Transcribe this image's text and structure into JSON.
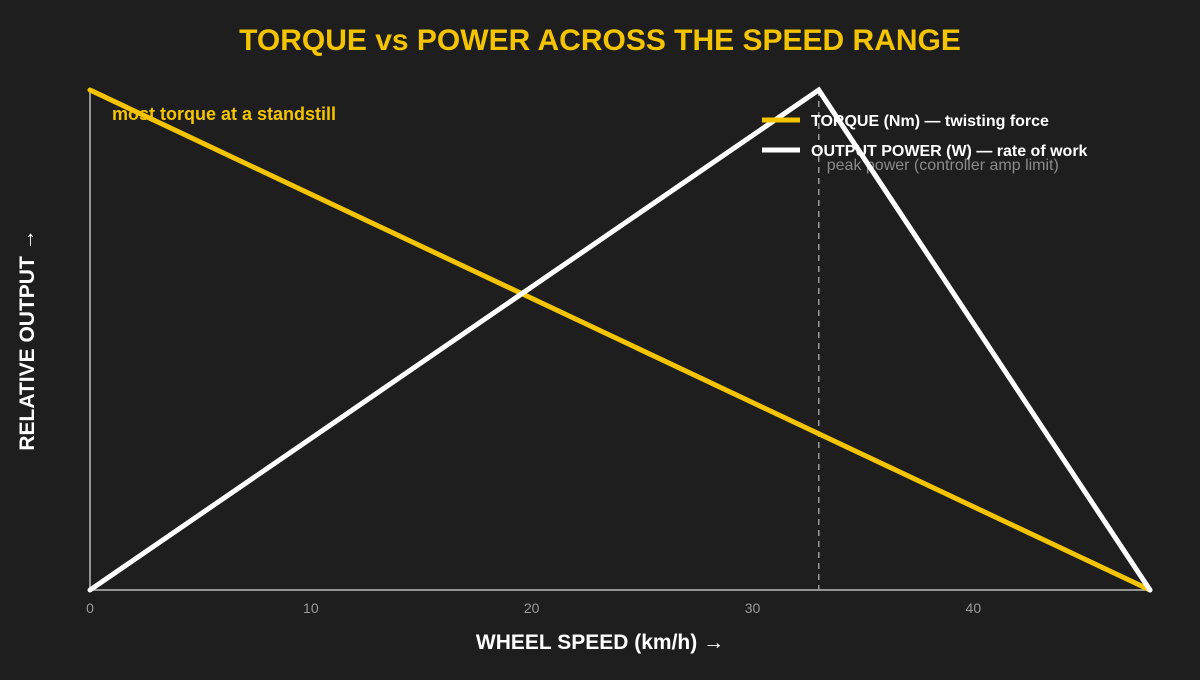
{
  "chart_data": {
    "type": "line",
    "title": "TORQUE vs POWER ACROSS THE SPEED RANGE",
    "xlabel": "WHEEL SPEED  (km/h)  →",
    "ylabel": "RELATIVE OUTPUT  →",
    "xlim": [
      0,
      48
    ],
    "ylim": [
      0,
      1
    ],
    "x_ticks": [
      0,
      10,
      20,
      30,
      40
    ],
    "y_ticks_shown": false,
    "grid": false,
    "legend_position": "top-right",
    "series": [
      {
        "name": "TORQUE (Nm) — twisting force",
        "color": "#f5c400",
        "x": [
          0,
          48
        ],
        "y": [
          1.0,
          0.0
        ]
      },
      {
        "name": "OUTPUT POWER (W) — rate of work",
        "color": "#ffffff",
        "x": [
          0,
          33,
          48
        ],
        "y": [
          0.0,
          1.0,
          0.0
        ]
      }
    ],
    "reference_lines": [
      {
        "x": 33,
        "style": "dashed",
        "color": "#9a9a9a",
        "label": "peak power (controller amp limit)"
      }
    ],
    "annotations": [
      {
        "text": "most torque at a standstill",
        "x": 1,
        "y": 0.95,
        "color": "#f5c400"
      }
    ],
    "colors": {
      "background": "#1e1e1e",
      "title": "#f5c400",
      "axis": "#bbbbbb"
    }
  }
}
